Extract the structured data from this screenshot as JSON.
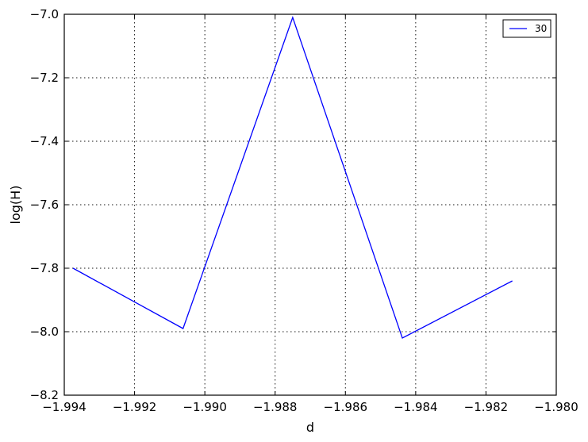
{
  "chart_data": {
    "type": "line",
    "title": "",
    "xlabel": "d",
    "ylabel": "log(H)",
    "xlim": [
      -1.994,
      -1.98
    ],
    "ylim": [
      -8.2,
      -7.0
    ],
    "x_ticks": [
      -1.994,
      -1.992,
      -1.99,
      -1.988,
      -1.986,
      -1.984,
      -1.982,
      -1.98
    ],
    "x_tick_labels": [
      "−1.994",
      "−1.992",
      "−1.990",
      "−1.988",
      "−1.986",
      "−1.984",
      "−1.982",
      "−1.980"
    ],
    "y_ticks": [
      -7.0,
      -7.2,
      -7.4,
      -7.6,
      -7.8,
      -8.0,
      -8.2
    ],
    "y_tick_labels": [
      "−7.0",
      "−7.2",
      "−7.4",
      "−7.6",
      "−7.8",
      "−8.0",
      "−8.2"
    ],
    "grid": true,
    "legend_position": "top-right",
    "series": [
      {
        "name": "30",
        "color": "#0000ff",
        "x": [
          -1.99375,
          -1.99062,
          -1.9875,
          -1.98438,
          -1.98125
        ],
        "y": [
          -7.8,
          -7.99,
          -7.01,
          -8.02,
          -7.84
        ]
      }
    ]
  }
}
